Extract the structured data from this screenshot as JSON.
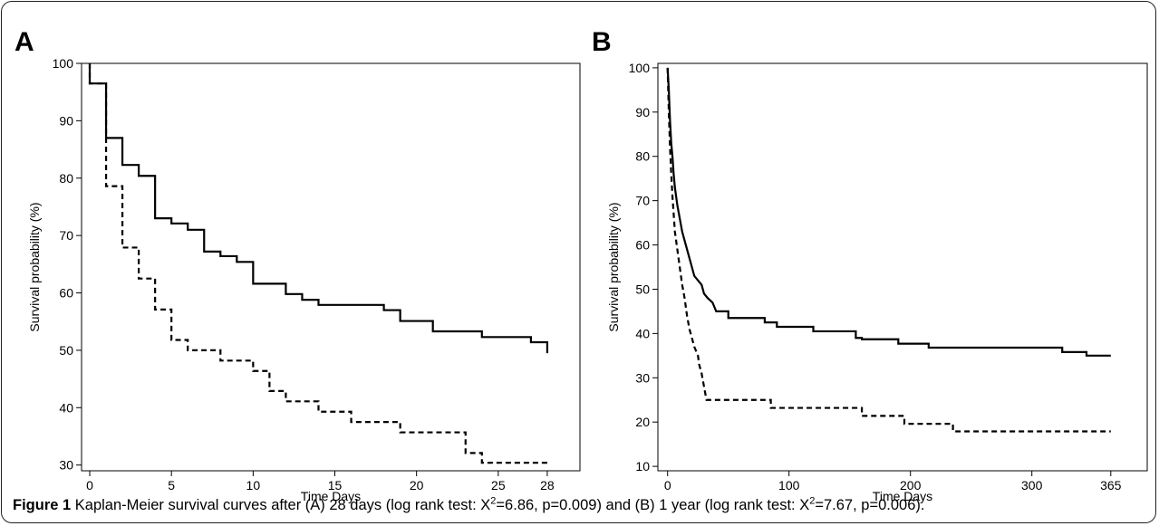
{
  "figure": {
    "caption_label": "Figure 1",
    "caption_pre": "Kaplan-Meier survival curves after (A) 28 days (log rank test: X",
    "caption_sup1": "2",
    "caption_mid": "=6.86, p=0.009) and (B) 1 year (log rank test: X",
    "caption_sup2": "2",
    "caption_post": "=7.67, p=0.006)."
  },
  "chart_data": [
    {
      "type": "line",
      "step": "post",
      "panel_label": "A",
      "xlabel": "Time Days",
      "ylabel": "Survival probability (%)",
      "xlim": [
        -0.5,
        30
      ],
      "ylim": [
        29,
        100
      ],
      "xticks": [
        0,
        5,
        10,
        15,
        20,
        25,
        28
      ],
      "yticks": [
        30,
        40,
        50,
        60,
        70,
        80,
        90,
        100
      ],
      "series": [
        {
          "style": "solid",
          "points": [
            [
              0,
              100
            ],
            [
              0,
              96.5
            ],
            [
              1,
              96.5
            ],
            [
              1,
              87
            ],
            [
              2,
              87
            ],
            [
              2,
              82.3
            ],
            [
              3,
              82.3
            ],
            [
              3,
              80.4
            ],
            [
              4,
              80.4
            ],
            [
              4,
              73
            ],
            [
              5,
              73
            ],
            [
              5,
              72.1
            ],
            [
              6,
              72.1
            ],
            [
              6,
              71
            ],
            [
              7,
              71
            ],
            [
              7,
              67.2
            ],
            [
              8,
              67.2
            ],
            [
              8,
              66.4
            ],
            [
              9,
              66.4
            ],
            [
              9,
              65.4
            ],
            [
              10,
              65.4
            ],
            [
              10,
              61.6
            ],
            [
              12,
              61.6
            ],
            [
              12,
              59.8
            ],
            [
              13,
              59.8
            ],
            [
              13,
              58.8
            ],
            [
              14,
              58.8
            ],
            [
              14,
              57.9
            ],
            [
              18,
              57.9
            ],
            [
              18,
              57
            ],
            [
              19,
              57
            ],
            [
              19,
              55.1
            ],
            [
              21,
              55.1
            ],
            [
              21,
              53.3
            ],
            [
              24,
              53.3
            ],
            [
              24,
              52.3
            ],
            [
              27,
              52.3
            ],
            [
              27,
              51.4
            ],
            [
              28,
              51.4
            ],
            [
              28,
              49.5
            ]
          ]
        },
        {
          "style": "dashed",
          "points": [
            [
              0,
              100
            ],
            [
              0,
              96.5
            ],
            [
              1,
              96.5
            ],
            [
              1,
              78.6
            ],
            [
              2,
              78.6
            ],
            [
              2,
              67.9
            ],
            [
              3,
              67.9
            ],
            [
              3,
              62.5
            ],
            [
              4,
              62.5
            ],
            [
              4,
              57.1
            ],
            [
              5,
              57.1
            ],
            [
              5,
              51.8
            ],
            [
              6,
              51.8
            ],
            [
              6,
              50
            ],
            [
              8,
              50
            ],
            [
              8,
              48.2
            ],
            [
              10,
              48.2
            ],
            [
              10,
              46.4
            ],
            [
              11,
              46.4
            ],
            [
              11,
              42.9
            ],
            [
              12,
              42.9
            ],
            [
              12,
              41.1
            ],
            [
              14,
              41.1
            ],
            [
              14,
              39.3
            ],
            [
              16,
              39.3
            ],
            [
              16,
              37.5
            ],
            [
              19,
              37.5
            ],
            [
              19,
              35.7
            ],
            [
              23,
              35.7
            ],
            [
              23,
              32.1
            ],
            [
              24,
              32.1
            ],
            [
              24,
              30.4
            ],
            [
              28,
              30.4
            ]
          ]
        }
      ]
    },
    {
      "type": "line",
      "step": "post",
      "panel_label": "B",
      "xlabel": "Time Days",
      "ylabel": "Survival probability (%)",
      "xlim": [
        -8,
        395
      ],
      "ylim": [
        9,
        101
      ],
      "xticks": [
        0,
        100,
        200,
        300,
        365
      ],
      "yticks": [
        10,
        20,
        30,
        40,
        50,
        60,
        70,
        80,
        90,
        100
      ],
      "series": [
        {
          "style": "solid",
          "points": [
            [
              0,
              100
            ],
            [
              1,
              95
            ],
            [
              2,
              88
            ],
            [
              3,
              83
            ],
            [
              4,
              80
            ],
            [
              5,
              76
            ],
            [
              6,
              73
            ],
            [
              7,
              71
            ],
            [
              8,
              69
            ],
            [
              10,
              66
            ],
            [
              12,
              63
            ],
            [
              14,
              61
            ],
            [
              16,
              59
            ],
            [
              18,
              57
            ],
            [
              20,
              55
            ],
            [
              22,
              53
            ],
            [
              25,
              52
            ],
            [
              28,
              51
            ],
            [
              30,
              49
            ],
            [
              33,
              48
            ],
            [
              37,
              47
            ],
            [
              40,
              45
            ],
            [
              50,
              45
            ],
            [
              50,
              43.5
            ],
            [
              80,
              43.5
            ],
            [
              80,
              42.5
            ],
            [
              90,
              42.5
            ],
            [
              90,
              41.5
            ],
            [
              120,
              41.5
            ],
            [
              120,
              40.5
            ],
            [
              155,
              40.5
            ],
            [
              155,
              39
            ],
            [
              160,
              39
            ],
            [
              160,
              38.7
            ],
            [
              190,
              38.7
            ],
            [
              190,
              37.7
            ],
            [
              215,
              37.7
            ],
            [
              215,
              36.8
            ],
            [
              325,
              36.8
            ],
            [
              325,
              35.8
            ],
            [
              345,
              35.8
            ],
            [
              345,
              35
            ],
            [
              365,
              35
            ]
          ]
        },
        {
          "style": "dashed",
          "points": [
            [
              0,
              100
            ],
            [
              1,
              90
            ],
            [
              2,
              82
            ],
            [
              3,
              76
            ],
            [
              4,
              71
            ],
            [
              5,
              67
            ],
            [
              6,
              63
            ],
            [
              8,
              59
            ],
            [
              10,
              55
            ],
            [
              12,
              51
            ],
            [
              14,
              48
            ],
            [
              16,
              44
            ],
            [
              18,
              41
            ],
            [
              20,
              39
            ],
            [
              22,
              37
            ],
            [
              25,
              35
            ],
            [
              26,
              33
            ],
            [
              28,
              31
            ],
            [
              30,
              28
            ],
            [
              32,
              25
            ],
            [
              85,
              25
            ],
            [
              85,
              23.2
            ],
            [
              160,
              23.2
            ],
            [
              160,
              21.4
            ],
            [
              195,
              21.4
            ],
            [
              195,
              19.6
            ],
            [
              235,
              19.6
            ],
            [
              235,
              17.9
            ],
            [
              365,
              17.9
            ]
          ]
        }
      ]
    }
  ]
}
